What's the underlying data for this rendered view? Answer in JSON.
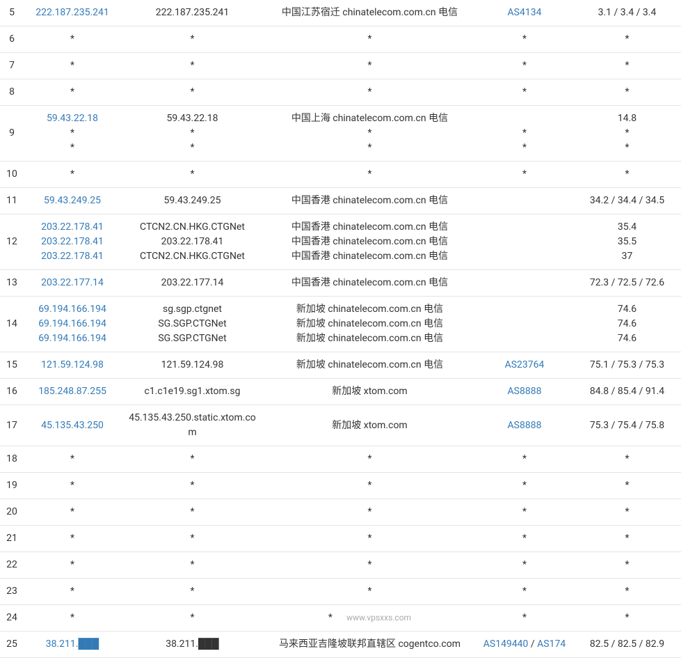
{
  "colors": {
    "link": "#337ab7",
    "text": "#333333",
    "border": "#e5e5e5",
    "background": "#ffffff",
    "watermark": "#aaaaaa"
  },
  "watermark": "www.vpsxxs.com",
  "rows": [
    {
      "hop": "5",
      "ip": [
        "222.187.235.241"
      ],
      "ip_link": true,
      "host": [
        "222.187.235.241"
      ],
      "loc": [
        "中国江苏宿迁 chinatelecom.com.cn 电信"
      ],
      "as": [
        "AS4134"
      ],
      "as_link": [
        true
      ],
      "rtt": [
        "3.1 / 3.4 / 3.4"
      ]
    },
    {
      "hop": "6",
      "ip": [
        "*"
      ],
      "ip_link": false,
      "host": [
        "*"
      ],
      "loc": [
        "*"
      ],
      "as": [
        "*"
      ],
      "as_link": [
        false
      ],
      "rtt": [
        "*"
      ]
    },
    {
      "hop": "7",
      "ip": [
        "*"
      ],
      "ip_link": false,
      "host": [
        "*"
      ],
      "loc": [
        "*"
      ],
      "as": [
        "*"
      ],
      "as_link": [
        false
      ],
      "rtt": [
        "*"
      ]
    },
    {
      "hop": "8",
      "ip": [
        "*"
      ],
      "ip_link": false,
      "host": [
        "*"
      ],
      "loc": [
        "*"
      ],
      "as": [
        "*"
      ],
      "as_link": [
        false
      ],
      "rtt": [
        "*"
      ]
    },
    {
      "hop": "9",
      "ip": [
        "59.43.22.18",
        "*",
        "*"
      ],
      "ip_link": true,
      "host": [
        "59.43.22.18",
        "*",
        "*"
      ],
      "loc": [
        "中国上海 chinatelecom.com.cn 电信",
        "*",
        "*"
      ],
      "as": [
        "",
        "*",
        "*"
      ],
      "as_link": [
        false,
        false,
        false
      ],
      "rtt": [
        "14.8",
        "*",
        "*"
      ]
    },
    {
      "hop": "10",
      "ip": [
        "*"
      ],
      "ip_link": false,
      "host": [
        "*"
      ],
      "loc": [
        "*"
      ],
      "as": [
        "*"
      ],
      "as_link": [
        false
      ],
      "rtt": [
        "*"
      ]
    },
    {
      "hop": "11",
      "ip": [
        "59.43.249.25"
      ],
      "ip_link": true,
      "host": [
        "59.43.249.25"
      ],
      "loc": [
        "中国香港 chinatelecom.com.cn 电信"
      ],
      "as": [
        ""
      ],
      "as_link": [
        false
      ],
      "rtt": [
        "34.2 / 34.4 / 34.5"
      ]
    },
    {
      "hop": "12",
      "ip": [
        "203.22.178.41",
        "203.22.178.41",
        "203.22.178.41"
      ],
      "ip_link": true,
      "host": [
        "CTCN2.CN.HKG.CTGNet",
        "203.22.178.41",
        "CTCN2.CN.HKG.CTGNet"
      ],
      "loc": [
        "中国香港 chinatelecom.com.cn 电信",
        "中国香港 chinatelecom.com.cn 电信",
        "中国香港 chinatelecom.com.cn 电信"
      ],
      "as": [
        "",
        "",
        ""
      ],
      "as_link": [
        false,
        false,
        false
      ],
      "rtt": [
        "35.4",
        "35.5",
        "37"
      ]
    },
    {
      "hop": "13",
      "ip": [
        "203.22.177.14"
      ],
      "ip_link": true,
      "host": [
        "203.22.177.14"
      ],
      "loc": [
        "中国香港 chinatelecom.com.cn 电信"
      ],
      "as": [
        ""
      ],
      "as_link": [
        false
      ],
      "rtt": [
        "72.3 / 72.5 / 72.6"
      ]
    },
    {
      "hop": "14",
      "ip": [
        "69.194.166.194",
        "69.194.166.194",
        "69.194.166.194"
      ],
      "ip_link": true,
      "host": [
        "sg.sgp.ctgnet",
        "SG.SGP.CTGNet",
        "SG.SGP.CTGNet"
      ],
      "loc": [
        "新加坡 chinatelecom.com.cn 电信",
        "新加坡 chinatelecom.com.cn 电信",
        "新加坡 chinatelecom.com.cn 电信"
      ],
      "as": [
        "",
        "",
        ""
      ],
      "as_link": [
        false,
        false,
        false
      ],
      "rtt": [
        "74.6",
        "74.6",
        "74.6"
      ]
    },
    {
      "hop": "15",
      "ip": [
        "121.59.124.98"
      ],
      "ip_link": true,
      "host": [
        "121.59.124.98"
      ],
      "loc": [
        "新加坡 chinatelecom.com.cn 电信"
      ],
      "as": [
        "AS23764"
      ],
      "as_link": [
        true
      ],
      "rtt": [
        "75.1 / 75.3 / 75.3"
      ]
    },
    {
      "hop": "16",
      "ip": [
        "185.248.87.255"
      ],
      "ip_link": true,
      "host": [
        "c1.c1e19.sg1.xtom.sg"
      ],
      "loc": [
        "新加坡 xtom.com"
      ],
      "as": [
        "AS8888"
      ],
      "as_link": [
        true
      ],
      "rtt": [
        "84.8 / 85.4 / 91.4"
      ]
    },
    {
      "hop": "17",
      "ip": [
        "45.135.43.250"
      ],
      "ip_link": true,
      "host": [
        "45.135.43.250.static.xtom.com"
      ],
      "loc": [
        "新加坡 xtom.com"
      ],
      "as": [
        "AS8888"
      ],
      "as_link": [
        true
      ],
      "rtt": [
        "75.3 / 75.4 / 75.8"
      ]
    },
    {
      "hop": "18",
      "ip": [
        "*"
      ],
      "ip_link": false,
      "host": [
        "*"
      ],
      "loc": [
        "*"
      ],
      "as": [
        "*"
      ],
      "as_link": [
        false
      ],
      "rtt": [
        "*"
      ]
    },
    {
      "hop": "19",
      "ip": [
        "*"
      ],
      "ip_link": false,
      "host": [
        "*"
      ],
      "loc": [
        "*"
      ],
      "as": [
        "*"
      ],
      "as_link": [
        false
      ],
      "rtt": [
        "*"
      ]
    },
    {
      "hop": "20",
      "ip": [
        "*"
      ],
      "ip_link": false,
      "host": [
        "*"
      ],
      "loc": [
        "*"
      ],
      "as": [
        "*"
      ],
      "as_link": [
        false
      ],
      "rtt": [
        "*"
      ]
    },
    {
      "hop": "21",
      "ip": [
        "*"
      ],
      "ip_link": false,
      "host": [
        "*"
      ],
      "loc": [
        "*"
      ],
      "as": [
        "*"
      ],
      "as_link": [
        false
      ],
      "rtt": [
        "*"
      ]
    },
    {
      "hop": "22",
      "ip": [
        "*"
      ],
      "ip_link": false,
      "host": [
        "*"
      ],
      "loc": [
        "*"
      ],
      "as": [
        "*"
      ],
      "as_link": [
        false
      ],
      "rtt": [
        "*"
      ]
    },
    {
      "hop": "23",
      "ip": [
        "*"
      ],
      "ip_link": false,
      "host": [
        "*"
      ],
      "loc": [
        "*"
      ],
      "as": [
        "*"
      ],
      "as_link": [
        false
      ],
      "rtt": [
        "*"
      ]
    },
    {
      "hop": "24",
      "ip": [
        "*"
      ],
      "ip_link": false,
      "host": [
        "*"
      ],
      "loc": [
        "*"
      ],
      "as": [
        "*"
      ],
      "as_link": [
        false
      ],
      "rtt": [
        "*"
      ],
      "watermark_in_loc": true
    },
    {
      "hop": "25",
      "ip": [
        "38.211.███"
      ],
      "ip_link": true,
      "host": [
        "38.211.███"
      ],
      "loc": [
        "马来西亚吉隆坡联邦直辖区 cogentco.com"
      ],
      "as": [
        "AS149440 / AS174"
      ],
      "as_link": [
        true
      ],
      "rtt": [
        "82.5 / 82.5 / 82.9"
      ]
    }
  ]
}
